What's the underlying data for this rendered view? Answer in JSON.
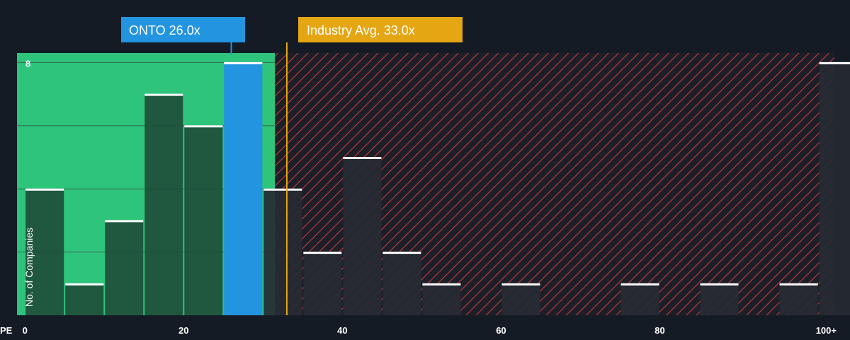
{
  "chart_data": {
    "type": "bar",
    "x_axis_label": "PE",
    "y_axis_label": "No. of Companies",
    "x_ticks": [
      "0",
      "20",
      "40",
      "60",
      "80",
      "100+"
    ],
    "x_tick_values": [
      0,
      20,
      40,
      60,
      80,
      100
    ],
    "y_tick_labels": [
      "8"
    ],
    "y_tick_values": [
      8
    ],
    "ylim": [
      0,
      8.3
    ],
    "xlim": [
      -1,
      102
    ],
    "bin_width": 5,
    "bins": [
      {
        "x": 0,
        "value": 4
      },
      {
        "x": 5,
        "value": 1
      },
      {
        "x": 10,
        "value": 3
      },
      {
        "x": 15,
        "value": 7
      },
      {
        "x": 20,
        "value": 6
      },
      {
        "x": 25,
        "value": 8
      },
      {
        "x": 30,
        "value": 4
      },
      {
        "x": 35,
        "value": 2
      },
      {
        "x": 40,
        "value": 5
      },
      {
        "x": 45,
        "value": 2
      },
      {
        "x": 50,
        "value": 1
      },
      {
        "x": 60,
        "value": 1
      },
      {
        "x": 75,
        "value": 1
      },
      {
        "x": 85,
        "value": 1
      },
      {
        "x": 95,
        "value": 1
      },
      {
        "x": 100,
        "value": 8
      }
    ],
    "highlight_bin_x": 25,
    "fair_zone_max": 31.5,
    "company": {
      "label": "ONTO 26.0x",
      "value": 26.0
    },
    "industry": {
      "label": "Industry Avg. 33.0x",
      "value": 33.0
    },
    "colors": {
      "background": "#151b24",
      "fair_zone": "#2ec47c",
      "highlight_bar": "#2394e0",
      "bar_in_fair": "#1e4d3a",
      "bar_in_over": "#262a33",
      "hatch_line": "#c43a3e",
      "hatch_bg": "#1c1f27",
      "industry_line": "#e5a613",
      "company_line": "#2394e0",
      "bar_cap": "#ffffff",
      "text": "#ffffff",
      "gridline": "#2f6b50"
    }
  }
}
